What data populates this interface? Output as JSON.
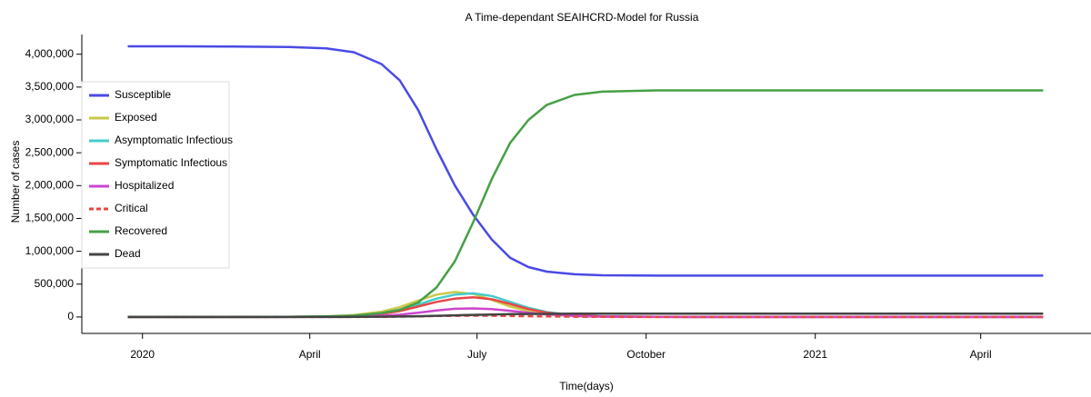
{
  "chart_data": {
    "type": "line",
    "title": "A Time-dependant SEAIHCRD-Model for Russia",
    "x_label": "Time(days)",
    "y_label": "Number of cases",
    "x": [
      -8,
      20,
      50,
      80,
      100,
      115,
      130,
      140,
      150,
      160,
      170,
      180,
      190,
      200,
      210,
      220,
      235,
      250,
      280,
      320,
      380,
      440,
      490
    ],
    "xlim": [
      -33,
      516
    ],
    "xticks": [
      {
        "value": 0,
        "label": "2020"
      },
      {
        "value": 91,
        "label": "April"
      },
      {
        "value": 182,
        "label": "July"
      },
      {
        "value": 274,
        "label": "October"
      },
      {
        "value": 366,
        "label": "2021"
      },
      {
        "value": 456,
        "label": "April"
      }
    ],
    "ylim": [
      -250000,
      4300000
    ],
    "yticks": [
      0,
      {
        "value": 500000,
        "label": "500,000"
      },
      {
        "value": 1000000,
        "label": "1,000,000"
      },
      {
        "value": 1500000,
        "label": "1,500,000"
      },
      {
        "value": 2000000,
        "label": "2,000,000"
      },
      {
        "value": 2500000,
        "label": "2,500,000"
      },
      {
        "value": 3000000,
        "label": "3,000,000"
      },
      {
        "value": 3500000,
        "label": "3,500,000"
      },
      {
        "value": 4000000,
        "label": "4,000,000"
      }
    ],
    "legend": "center left",
    "series": [
      {
        "name": "Susceptible",
        "color": "#4a4ae6",
        "dashed": false,
        "values": [
          4120000,
          4120000,
          4118000,
          4110000,
          4090000,
          4030000,
          3850000,
          3600000,
          3150000,
          2550000,
          2000000,
          1550000,
          1180000,
          900000,
          760000,
          690000,
          650000,
          635000,
          630000,
          630000,
          630000,
          630000,
          630000
        ]
      },
      {
        "name": "Exposed",
        "color": "#c9c94a",
        "dashed": false,
        "values": [
          0,
          0,
          500,
          3000,
          10000,
          30000,
          80000,
          150000,
          250000,
          340000,
          380000,
          350000,
          260000,
          160000,
          90000,
          45000,
          15000,
          5000,
          1000,
          0,
          0,
          0,
          0
        ]
      },
      {
        "name": "Asymptomatic Infectious",
        "color": "#45cccc",
        "dashed": false,
        "values": [
          0,
          0,
          300,
          2000,
          7000,
          20000,
          55000,
          110000,
          190000,
          280000,
          340000,
          360000,
          320000,
          230000,
          140000,
          75000,
          25000,
          8000,
          1500,
          0,
          0,
          0,
          0
        ]
      },
      {
        "name": "Symptomatic Infectious",
        "color": "#e84646",
        "dashed": false,
        "values": [
          0,
          0,
          200,
          1500,
          5000,
          15000,
          45000,
          90000,
          160000,
          230000,
          280000,
          300000,
          270000,
          200000,
          120000,
          65000,
          22000,
          7000,
          1500,
          300,
          0,
          0,
          0
        ]
      },
      {
        "name": "Hospitalized",
        "color": "#cc46cc",
        "dashed": false,
        "values": [
          0,
          0,
          100,
          600,
          2000,
          6000,
          18000,
          35000,
          65000,
          100000,
          125000,
          130000,
          120000,
          95000,
          65000,
          40000,
          15000,
          6000,
          1500,
          300,
          0,
          0,
          0
        ]
      },
      {
        "name": "Critical",
        "color": "#e84646",
        "dashed": true,
        "values": [
          0,
          0,
          20,
          100,
          400,
          1000,
          3000,
          6000,
          10000,
          15000,
          18000,
          20000,
          19000,
          16000,
          12000,
          8000,
          4000,
          2000,
          500,
          100,
          0,
          0,
          0
        ]
      },
      {
        "name": "Recovered",
        "color": "#46a046",
        "dashed": false,
        "values": [
          0,
          0,
          0,
          2000,
          8000,
          20000,
          60000,
          110000,
          220000,
          450000,
          850000,
          1450000,
          2100000,
          2650000,
          3000000,
          3230000,
          3380000,
          3430000,
          3450000,
          3450000,
          3450000,
          3450000,
          3450000
        ]
      },
      {
        "name": "Dead",
        "color": "#444444",
        "dashed": false,
        "values": [
          0,
          0,
          20,
          150,
          500,
          1500,
          4000,
          7000,
          12000,
          18000,
          25000,
          32000,
          38000,
          43000,
          46000,
          48000,
          50000,
          51000,
          52000,
          52000,
          52000,
          52000,
          52000
        ]
      }
    ]
  }
}
